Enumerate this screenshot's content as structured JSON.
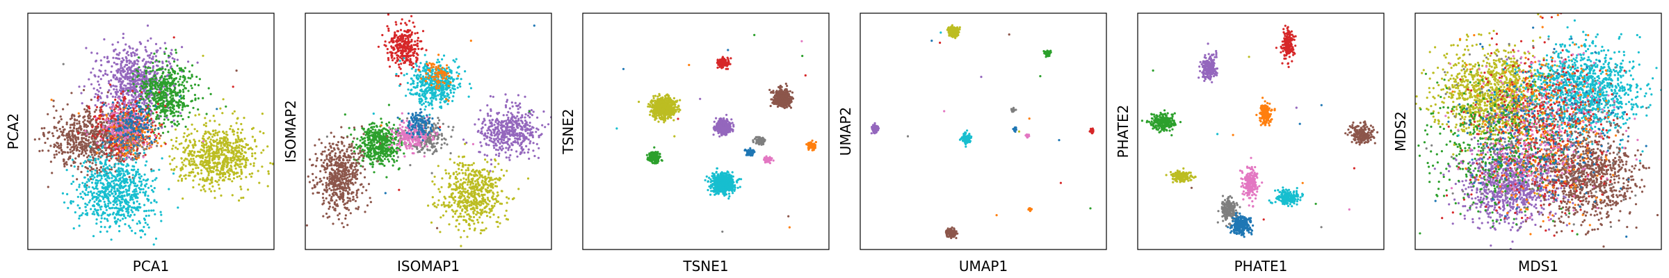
{
  "palette": {
    "blue": "#1f77b4",
    "orange": "#ff7f0e",
    "green": "#2ca02c",
    "red": "#d62728",
    "purple": "#9467bd",
    "brown": "#8c564b",
    "pink": "#e377c2",
    "gray": "#7f7f7f",
    "olive": "#bcbd22",
    "cyan": "#17becf"
  },
  "chart_data": [
    {
      "type": "scatter",
      "title": "",
      "xlabel": "PCA1",
      "ylabel": "PCA2",
      "xlim": [
        0,
        100
      ],
      "ylim": [
        0,
        100
      ],
      "ticks": false,
      "grid": false,
      "clusters": [
        {
          "color": "brown",
          "cx": 26,
          "cy": 46,
          "sx": 9,
          "sy": 6.5,
          "n": 700
        },
        {
          "color": "cyan",
          "cx": 36,
          "cy": 25,
          "sx": 7.5,
          "sy": 8,
          "n": 700
        },
        {
          "color": "purple",
          "cx": 44,
          "cy": 71,
          "sx": 7.5,
          "sy": 8,
          "n": 700
        },
        {
          "color": "green",
          "cx": 56,
          "cy": 66,
          "sx": 6,
          "sy": 6.5,
          "n": 500
        },
        {
          "color": "olive",
          "cx": 77,
          "cy": 39,
          "sx": 8,
          "sy": 6.5,
          "n": 700
        },
        {
          "color": "red",
          "cx": 39,
          "cy": 52,
          "sx": 6,
          "sy": 6,
          "n": 350
        },
        {
          "color": "orange",
          "cx": 42,
          "cy": 49,
          "sx": 5,
          "sy": 5,
          "n": 200
        },
        {
          "color": "gray",
          "cx": 40,
          "cy": 49,
          "sx": 5,
          "sy": 5,
          "n": 150
        },
        {
          "color": "pink",
          "cx": 39,
          "cy": 52,
          "sx": 5,
          "sy": 5,
          "n": 150
        },
        {
          "color": "blue",
          "cx": 42,
          "cy": 53,
          "sx": 5,
          "sy": 5,
          "n": 150
        }
      ]
    },
    {
      "type": "scatter",
      "title": "",
      "xlabel": "ISOMAP1",
      "ylabel": "ISOMAP2",
      "xlim": [
        0,
        100
      ],
      "ylim": [
        0,
        100
      ],
      "ticks": false,
      "grid": false,
      "clusters": [
        {
          "color": "red",
          "cx": 40,
          "cy": 86,
          "sx": 3.5,
          "sy": 4.5,
          "n": 300
        },
        {
          "color": "cyan",
          "cx": 52,
          "cy": 70,
          "sx": 5,
          "sy": 4.5,
          "n": 450
        },
        {
          "color": "orange",
          "cx": 54,
          "cy": 74,
          "sx": 3,
          "sy": 3,
          "n": 80
        },
        {
          "color": "green",
          "cx": 30,
          "cy": 45,
          "sx": 4.5,
          "sy": 4.5,
          "n": 450
        },
        {
          "color": "brown",
          "cx": 14,
          "cy": 31,
          "sx": 5,
          "sy": 8,
          "n": 550
        },
        {
          "color": "purple",
          "cx": 82,
          "cy": 50,
          "sx": 6,
          "sy": 5,
          "n": 450
        },
        {
          "color": "olive",
          "cx": 68,
          "cy": 23,
          "sx": 6,
          "sy": 7,
          "n": 550
        },
        {
          "color": "gray",
          "cx": 49,
          "cy": 48,
          "sx": 4,
          "sy": 3.5,
          "n": 200
        },
        {
          "color": "pink",
          "cx": 43,
          "cy": 48,
          "sx": 4,
          "sy": 3,
          "n": 200
        },
        {
          "color": "blue",
          "cx": 46,
          "cy": 53,
          "sx": 3,
          "sy": 2.5,
          "n": 120
        }
      ]
    },
    {
      "type": "scatter",
      "title": "",
      "xlabel": "TSNE1",
      "ylabel": "TSNE2",
      "xlim": [
        0,
        100
      ],
      "ylim": [
        0,
        100
      ],
      "ticks": false,
      "grid": false,
      "clusters": [
        {
          "color": "olive",
          "cx": 33,
          "cy": 60,
          "sx": 2.4,
          "sy": 2.2,
          "n": 600
        },
        {
          "color": "red",
          "cx": 57,
          "cy": 79,
          "sx": 1.1,
          "sy": 1.0,
          "n": 120
        },
        {
          "color": "brown",
          "cx": 81,
          "cy": 64,
          "sx": 1.8,
          "sy": 1.8,
          "n": 450
        },
        {
          "color": "purple",
          "cx": 57,
          "cy": 52,
          "sx": 1.6,
          "sy": 1.5,
          "n": 350
        },
        {
          "color": "green",
          "cx": 29,
          "cy": 39,
          "sx": 1.2,
          "sy": 1.1,
          "n": 200
        },
        {
          "color": "cyan",
          "cx": 57,
          "cy": 28,
          "sx": 2.3,
          "sy": 2.0,
          "n": 600
        },
        {
          "color": "gray",
          "cx": 72,
          "cy": 46,
          "sx": 1.0,
          "sy": 0.8,
          "n": 100
        },
        {
          "color": "blue",
          "cx": 68,
          "cy": 41,
          "sx": 0.8,
          "sy": 0.6,
          "n": 70
        },
        {
          "color": "pink",
          "cx": 75,
          "cy": 38,
          "sx": 0.8,
          "sy": 0.6,
          "n": 70
        },
        {
          "color": "orange",
          "cx": 93,
          "cy": 44,
          "sx": 0.8,
          "sy": 0.8,
          "n": 70
        }
      ]
    },
    {
      "type": "scatter",
      "title": "",
      "xlabel": "UMAP1",
      "ylabel": "UMAP2",
      "xlim": [
        0,
        100
      ],
      "ylim": [
        0,
        100
      ],
      "ticks": false,
      "grid": false,
      "clusters": [
        {
          "color": "olive",
          "cx": 38,
          "cy": 92,
          "sx": 0.9,
          "sy": 1.0,
          "n": 250
        },
        {
          "color": "green",
          "cx": 76,
          "cy": 83,
          "sx": 0.6,
          "sy": 0.6,
          "n": 70
        },
        {
          "color": "purple",
          "cx": 6,
          "cy": 51,
          "sx": 0.7,
          "sy": 0.8,
          "n": 100
        },
        {
          "color": "cyan",
          "cx": 43,
          "cy": 47,
          "sx": 0.9,
          "sy": 0.9,
          "n": 150
        },
        {
          "color": "gray",
          "cx": 62,
          "cy": 59,
          "sx": 0.4,
          "sy": 0.4,
          "n": 40
        },
        {
          "color": "blue",
          "cx": 63,
          "cy": 51,
          "sx": 0.3,
          "sy": 0.4,
          "n": 25
        },
        {
          "color": "pink",
          "cx": 68,
          "cy": 48,
          "sx": 0.3,
          "sy": 0.3,
          "n": 20
        },
        {
          "color": "red",
          "cx": 94,
          "cy": 50,
          "sx": 0.4,
          "sy": 0.6,
          "n": 40
        },
        {
          "color": "orange",
          "cx": 69,
          "cy": 17,
          "sx": 0.3,
          "sy": 0.4,
          "n": 20
        },
        {
          "color": "brown",
          "cx": 37,
          "cy": 7,
          "sx": 0.9,
          "sy": 0.9,
          "n": 150
        }
      ]
    },
    {
      "type": "scatter",
      "title": "",
      "xlabel": "PHATE1",
      "ylabel": "PHATE2",
      "xlim": [
        0,
        100
      ],
      "ylim": [
        0,
        100
      ],
      "ticks": false,
      "grid": false,
      "clusters": [
        {
          "color": "red",
          "cx": 61,
          "cy": 87,
          "sx": 1.2,
          "sy": 3.0,
          "n": 200
        },
        {
          "color": "purple",
          "cx": 29,
          "cy": 77,
          "sx": 1.5,
          "sy": 2.5,
          "n": 200
        },
        {
          "color": "orange",
          "cx": 52,
          "cy": 57,
          "sx": 1.2,
          "sy": 2.2,
          "n": 150
        },
        {
          "color": "green",
          "cx": 10,
          "cy": 54,
          "sx": 2.6,
          "sy": 1.8,
          "n": 220
        },
        {
          "color": "brown",
          "cx": 91,
          "cy": 49,
          "sx": 2.2,
          "sy": 2.0,
          "n": 200
        },
        {
          "color": "olive",
          "cx": 18,
          "cy": 31,
          "sx": 2.2,
          "sy": 1.2,
          "n": 150
        },
        {
          "color": "pink",
          "cx": 46,
          "cy": 28,
          "sx": 1.5,
          "sy": 3.5,
          "n": 200
        },
        {
          "color": "cyan",
          "cx": 61,
          "cy": 22,
          "sx": 2.6,
          "sy": 1.5,
          "n": 200
        },
        {
          "color": "gray",
          "cx": 37,
          "cy": 17,
          "sx": 1.6,
          "sy": 2.5,
          "n": 180
        },
        {
          "color": "blue",
          "cx": 42,
          "cy": 10,
          "sx": 2.2,
          "sy": 2.0,
          "n": 220
        }
      ]
    },
    {
      "type": "scatter",
      "title": "",
      "xlabel": "MDS1",
      "ylabel": "MDS2",
      "xlim": [
        0,
        100
      ],
      "ylim": [
        0,
        100
      ],
      "ticks": false,
      "grid": false,
      "clusters": [
        {
          "color": "olive",
          "cx": 31,
          "cy": 66,
          "sx": 11,
          "sy": 9,
          "n": 1100
        },
        {
          "color": "cyan",
          "cx": 69,
          "cy": 67,
          "sx": 11,
          "sy": 9,
          "n": 1100
        },
        {
          "color": "purple",
          "cx": 38,
          "cy": 28,
          "sx": 10,
          "sy": 9,
          "n": 900
        },
        {
          "color": "brown",
          "cx": 70,
          "cy": 32,
          "sx": 10,
          "sy": 10,
          "n": 900
        },
        {
          "color": "red",
          "cx": 50,
          "cy": 50,
          "sx": 14,
          "sy": 16,
          "n": 500
        },
        {
          "color": "green",
          "cx": 30,
          "cy": 42,
          "sx": 13,
          "sy": 14,
          "n": 400
        },
        {
          "color": "orange",
          "cx": 52,
          "cy": 52,
          "sx": 14,
          "sy": 18,
          "n": 300
        },
        {
          "color": "gray",
          "cx": 50,
          "cy": 50,
          "sx": 16,
          "sy": 16,
          "n": 250
        },
        {
          "color": "pink",
          "cx": 50,
          "cy": 50,
          "sx": 16,
          "sy": 16,
          "n": 250
        },
        {
          "color": "blue",
          "cx": 50,
          "cy": 50,
          "sx": 16,
          "sy": 16,
          "n": 250
        }
      ]
    }
  ]
}
